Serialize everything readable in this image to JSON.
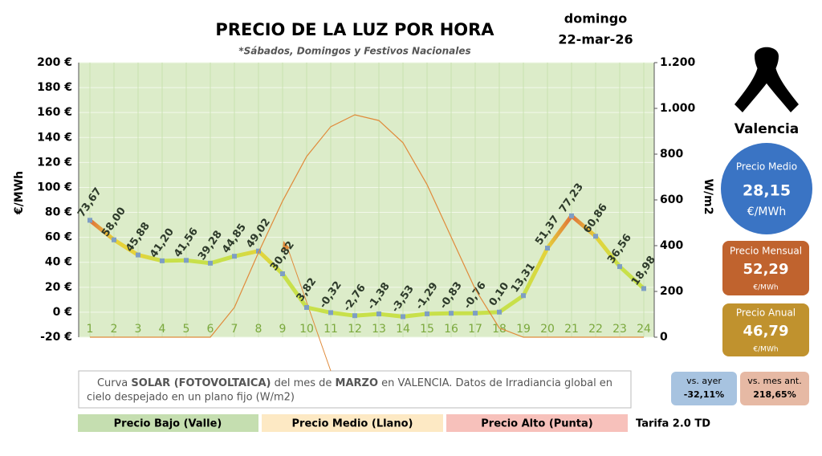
{
  "chart_data": {
    "type": "line",
    "title": "PRECIO DE LA LUZ POR HORA",
    "subtitle": "*Sábados, Domingos y Festivos Nacionales",
    "day": "domingo",
    "date": "22-mar-26",
    "ylabel": "€/MWh",
    "y2label": "W/m2",
    "categories": [
      "1",
      "2",
      "3",
      "4",
      "5",
      "6",
      "7",
      "8",
      "9",
      "10",
      "11",
      "12",
      "13",
      "14",
      "15",
      "16",
      "17",
      "18",
      "19",
      "20",
      "21",
      "22",
      "23",
      "24"
    ],
    "series": [
      {
        "name": "Precio",
        "color": "#c8e04a",
        "values": [
          73.67,
          58.0,
          45.88,
          41.2,
          41.56,
          39.28,
          44.85,
          49.02,
          30.82,
          3.82,
          -0.32,
          -2.76,
          -1.38,
          -3.53,
          -1.29,
          -0.83,
          -0.76,
          0.1,
          13.31,
          51.37,
          77.23,
          60.86,
          36.56,
          18.98
        ],
        "value_labels": [
          "73,67",
          "58,00",
          "45,88",
          "41,20",
          "41,56",
          "39,28",
          "44,85",
          "49,02",
          "30,82",
          "3,82",
          "-0,32",
          "-2,76",
          "-1,38",
          "-3,53",
          "-1,29",
          "-0,83",
          "-0,76",
          "0,10",
          "13,31",
          "51,37",
          "77,23",
          "60,86",
          "36,56",
          "18,98"
        ]
      },
      {
        "name": "Solar",
        "color": "#e08a3a",
        "axis": "y2",
        "values": [
          0,
          0,
          0,
          0,
          0,
          0,
          130,
          370,
          595,
          790,
          920,
          972,
          947,
          850,
          667,
          438,
          210,
          40,
          0,
          0,
          0,
          0,
          0,
          0
        ]
      }
    ],
    "ylim": [
      -20,
      200
    ],
    "yticks": [
      {
        "value": -20,
        "label": "-20 €"
      },
      {
        "value": 0,
        "label": "0 €"
      },
      {
        "value": 20,
        "label": "20 €"
      },
      {
        "value": 40,
        "label": "40 €"
      },
      {
        "value": 60,
        "label": "60 €"
      },
      {
        "value": 80,
        "label": "80 €"
      },
      {
        "value": 100,
        "label": "100 €"
      },
      {
        "value": 120,
        "label": "120 €"
      },
      {
        "value": 140,
        "label": "140 €"
      },
      {
        "value": 160,
        "label": "160 €"
      },
      {
        "value": 180,
        "label": "180 €"
      },
      {
        "value": 200,
        "label": "200 €"
      }
    ],
    "y2lim": [
      0,
      1200
    ],
    "y2ticks": [
      0,
      200,
      400,
      600,
      800,
      {
        "value": 1000,
        "label": "1.000"
      },
      {
        "value": 1200,
        "label": "1.200"
      }
    ],
    "grid": true,
    "legend": [
      "Precio Bajo (Valle)",
      "Precio Medio (Llano)",
      "Precio Alto (Punta)"
    ],
    "tariff": "Tarifa 2.0 TD",
    "note": [
      "Curva ",
      "SOLAR (FOTOVOLTAICA)",
      " del mes de ",
      "MARZO",
      " en VALENCIA. Datos de Irradiancia global en",
      "cielo despejado en un plano fijo (W/m2)"
    ]
  },
  "panel": {
    "city": "Valencia",
    "average": {
      "label": "Precio Medio",
      "value": "28,15",
      "unit": "€/MWh"
    },
    "monthly": {
      "label": "Precio Mensual",
      "value": "52,29",
      "unit": "€/MWh"
    },
    "annual": {
      "label": "Precio Anual",
      "value": "46,79",
      "unit": "€/MWh"
    },
    "vs_yesterday": {
      "label": "vs. ayer",
      "value": "-32,11%"
    },
    "vs_last_month": {
      "label": "vs. mes ant.",
      "value": "218,65%"
    }
  }
}
